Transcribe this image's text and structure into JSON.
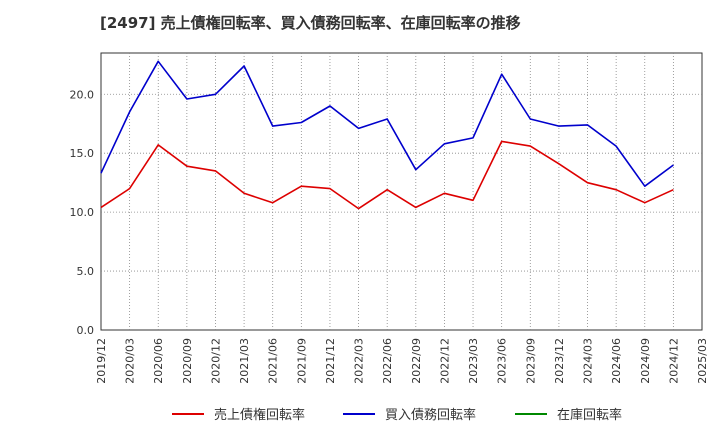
{
  "chart_data": {
    "type": "line",
    "title": "[2497]  売上債権回転率、買入債務回転率、在庫回転率の推移",
    "xlabel": "",
    "ylabel": "",
    "ylim": [
      0,
      23.5
    ],
    "yticks": [
      0,
      5,
      10,
      15,
      20
    ],
    "ytick_labels": [
      "0.0",
      "5.0",
      "10.0",
      "15.0",
      "20.0"
    ],
    "x": [
      "2019/12",
      "2020/03",
      "2020/06",
      "2020/09",
      "2020/12",
      "2021/03",
      "2021/06",
      "2021/09",
      "2021/12",
      "2022/03",
      "2022/06",
      "2022/09",
      "2022/12",
      "2023/03",
      "2023/06",
      "2023/09",
      "2023/12",
      "2024/03",
      "2024/06",
      "2024/09",
      "2024/12",
      "2025/03"
    ],
    "grid": true,
    "legend_position": "bottom",
    "series": [
      {
        "name": "売上債権回転率",
        "color": "#dd0000",
        "values": [
          10.4,
          12.0,
          15.7,
          13.9,
          13.5,
          11.6,
          10.8,
          12.2,
          12.0,
          10.3,
          11.9,
          10.4,
          11.6,
          11.0,
          16.0,
          15.6,
          14.1,
          12.5,
          11.9,
          10.8,
          11.9,
          null
        ]
      },
      {
        "name": "買入債務回転率",
        "color": "#0000cc",
        "values": [
          13.3,
          18.5,
          22.8,
          19.6,
          20.0,
          22.4,
          17.3,
          17.6,
          19.0,
          17.1,
          17.9,
          13.6,
          15.8,
          16.3,
          21.7,
          17.9,
          17.3,
          17.4,
          15.6,
          12.2,
          14.0,
          null
        ]
      },
      {
        "name": "在庫回転率",
        "color": "#008800",
        "values": [
          null,
          null,
          null,
          null,
          null,
          null,
          null,
          null,
          null,
          null,
          null,
          null,
          null,
          null,
          null,
          null,
          null,
          null,
          null,
          null,
          null,
          null
        ]
      }
    ]
  }
}
